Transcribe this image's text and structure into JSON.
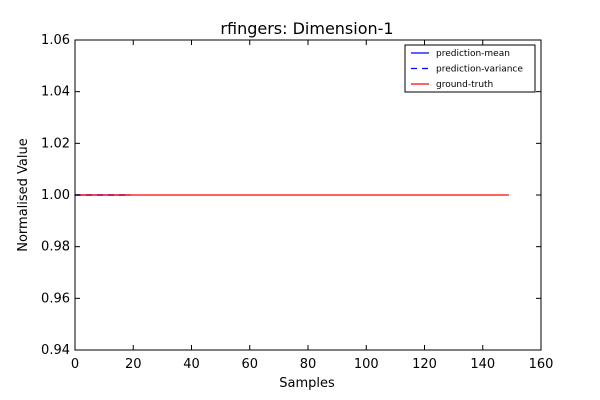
{
  "chart_data": {
    "type": "line",
    "title": "rfingers: Dimension-1",
    "xlabel": "Samples",
    "ylabel": "Normalised Value",
    "xlim": [
      0,
      160
    ],
    "ylim": [
      0.94,
      1.06
    ],
    "xticks": [
      0,
      20,
      40,
      60,
      80,
      100,
      120,
      140,
      160
    ],
    "yticks": [
      0.94,
      0.96,
      0.98,
      1.0,
      1.02,
      1.04,
      1.06
    ],
    "xtick_labels": [
      "0",
      "20",
      "40",
      "60",
      "80",
      "100",
      "120",
      "140",
      "160"
    ],
    "ytick_labels": [
      "0.94",
      "0.96",
      "0.98",
      "1.00",
      "1.02",
      "1.04",
      "1.06"
    ],
    "grid": false,
    "legend_position": "top-right",
    "series": [
      {
        "name": "prediction-mean",
        "color": "#0000ff",
        "style": "solid",
        "x": [
          0,
          19
        ],
        "y": [
          1.0,
          1.0
        ]
      },
      {
        "name": "prediction-variance",
        "color": "#0000ff",
        "style": "dashed",
        "x": [
          0,
          19
        ],
        "y": [
          1.0,
          1.0
        ]
      },
      {
        "name": "ground-truth",
        "color": "#ff0000",
        "style": "solid",
        "x": [
          0,
          149
        ],
        "y": [
          1.0,
          1.0
        ]
      }
    ]
  }
}
